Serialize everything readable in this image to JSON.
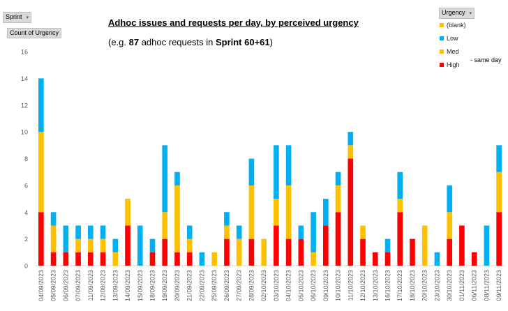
{
  "filters": {
    "sprint_label": "Sprint",
    "urgency_label": "Urgency",
    "value_field_label": "Count of Urgency"
  },
  "annotations": {
    "title": "Adhoc issues and requests per day, by perceived urgency",
    "subtitle_prefix": "(e.g. ",
    "subtitle_count": "87",
    "subtitle_middle": " adhoc requests in ",
    "subtitle_sprint": "Sprint 60+61",
    "subtitle_suffix": ")",
    "same_day_note": "- same day"
  },
  "chart_data": {
    "type": "bar",
    "stacked": true,
    "title": "Adhoc issues and requests per day, by perceived urgency",
    "xlabel": "",
    "ylabel": "",
    "ylim": [
      0,
      16
    ],
    "yticks": [
      0,
      2,
      4,
      6,
      8,
      10,
      12,
      14,
      16
    ],
    "grid": false,
    "legend_title": "Urgency",
    "legend_position": "top-right",
    "categories": [
      "04/09/2023",
      "05/09/2023",
      "06/09/2023",
      "07/09/2023",
      "11/09/2023",
      "12/09/2023",
      "13/09/2023",
      "14/09/2023",
      "15/09/2023",
      "18/09/2023",
      "19/09/2023",
      "20/09/2023",
      "21/09/2023",
      "22/09/2023",
      "25/09/2023",
      "26/09/2023",
      "27/09/2023",
      "28/09/2023",
      "02/10/2023",
      "03/10/2023",
      "04/10/2023",
      "05/10/2023",
      "06/10/2023",
      "09/10/2023",
      "10/10/2023",
      "11/10/2023",
      "12/10/2023",
      "13/10/2023",
      "16/10/2023",
      "17/10/2023",
      "18/10/2023",
      "20/10/2023",
      "23/10/2023",
      "30/10/2023",
      "01/11/2023",
      "06/11/2023",
      "08/11/2023",
      "09/11/2023"
    ],
    "series": [
      {
        "name": "High",
        "color": "#ff0000",
        "values": [
          4,
          1,
          1,
          1,
          1,
          1,
          0,
          3,
          0,
          1,
          2,
          1,
          1,
          0,
          0,
          2,
          0,
          2,
          0,
          3,
          2,
          2,
          0,
          3,
          4,
          8,
          2,
          1,
          1,
          4,
          2,
          0,
          0,
          2,
          3,
          1,
          0,
          4
        ]
      },
      {
        "name": "Med",
        "color": "#ffc000",
        "values": [
          6,
          2,
          0,
          1,
          1,
          1,
          1,
          2,
          0,
          0,
          2,
          5,
          1,
          0,
          1,
          1,
          2,
          4,
          2,
          2,
          4,
          0,
          1,
          0,
          2,
          1,
          1,
          0,
          0,
          1,
          0,
          3,
          0,
          2,
          0,
          0,
          0,
          3
        ]
      },
      {
        "name": "Low",
        "color": "#00b0f0",
        "values": [
          4,
          1,
          2,
          1,
          1,
          1,
          1,
          0,
          3,
          1,
          5,
          1,
          1,
          1,
          0,
          1,
          1,
          2,
          0,
          4,
          3,
          1,
          3,
          2,
          1,
          1,
          0,
          0,
          1,
          2,
          0,
          0,
          1,
          2,
          0,
          0,
          3,
          2
        ]
      },
      {
        "name": "(blank)",
        "color": "#ffc000",
        "values": [
          0,
          0,
          0,
          0,
          0,
          0,
          0,
          0,
          0,
          0,
          0,
          0,
          0,
          0,
          0,
          0,
          0,
          0,
          0,
          0,
          0,
          0,
          0,
          0,
          0,
          0,
          0,
          0,
          0,
          0,
          0,
          0,
          0,
          0,
          0,
          0,
          0,
          0
        ]
      }
    ],
    "legend_order": [
      "(blank)",
      "Low",
      "Med",
      "High"
    ]
  }
}
